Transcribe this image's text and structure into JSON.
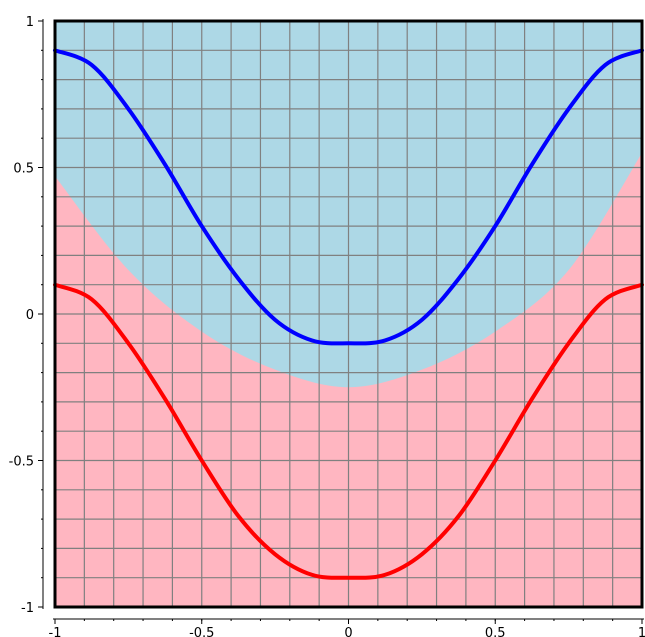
{
  "chart_data": {
    "type": "line",
    "title": "",
    "xlabel": "",
    "ylabel": "",
    "xlim": [
      -1,
      1
    ],
    "ylim": [
      -1,
      1
    ],
    "grid": true,
    "grid_step": 0.1,
    "x_ticks": [
      {
        "value": -1,
        "label": "-1"
      },
      {
        "value": -0.5,
        "label": "-0.5"
      },
      {
        "value": 0,
        "label": "0"
      },
      {
        "value": 0.5,
        "label": "0.5"
      },
      {
        "value": 1,
        "label": "1"
      }
    ],
    "y_ticks": [
      {
        "value": -1,
        "label": "-1"
      },
      {
        "value": -0.5,
        "label": "-0.5"
      },
      {
        "value": 0,
        "label": "0"
      },
      {
        "value": 0.5,
        "label": "0.5"
      },
      {
        "value": 1,
        "label": "1"
      }
    ],
    "regions": [
      {
        "color": "#add8e6",
        "description": "region above parabola",
        "boundary": {
          "x": [
            -1,
            -0.75,
            -0.5,
            -0.25,
            0,
            0.25,
            0.5,
            0.75,
            1
          ],
          "y": [
            0.47,
            0.15,
            -0.06,
            -0.19,
            -0.25,
            -0.19,
            -0.06,
            0.15,
            0.55
          ]
        }
      },
      {
        "color": "#ffb6c1",
        "description": "region below parabola"
      }
    ],
    "series": [
      {
        "color": "#0000ff",
        "x": [
          -1,
          -0.875,
          -0.75,
          -0.625,
          -0.5,
          -0.375,
          -0.25,
          -0.125,
          0,
          0.125,
          0.25,
          0.375,
          0.5,
          0.625,
          0.75,
          0.875,
          1
        ],
        "y": [
          0.9,
          0.85,
          0.7,
          0.51,
          0.3,
          0.12,
          -0.02,
          -0.09,
          -0.1,
          -0.09,
          -0.02,
          0.12,
          0.3,
          0.51,
          0.7,
          0.85,
          0.9
        ]
      },
      {
        "color": "#ff0000",
        "x": [
          -1,
          -0.875,
          -0.75,
          -0.625,
          -0.5,
          -0.375,
          -0.25,
          -0.125,
          0,
          0.125,
          0.25,
          0.375,
          0.5,
          0.625,
          0.75,
          0.875,
          1
        ],
        "y": [
          0.1,
          0.05,
          -0.1,
          -0.29,
          -0.5,
          -0.69,
          -0.82,
          -0.89,
          -0.9,
          -0.89,
          -0.82,
          -0.69,
          -0.5,
          -0.29,
          -0.1,
          0.05,
          0.1
        ]
      }
    ]
  }
}
